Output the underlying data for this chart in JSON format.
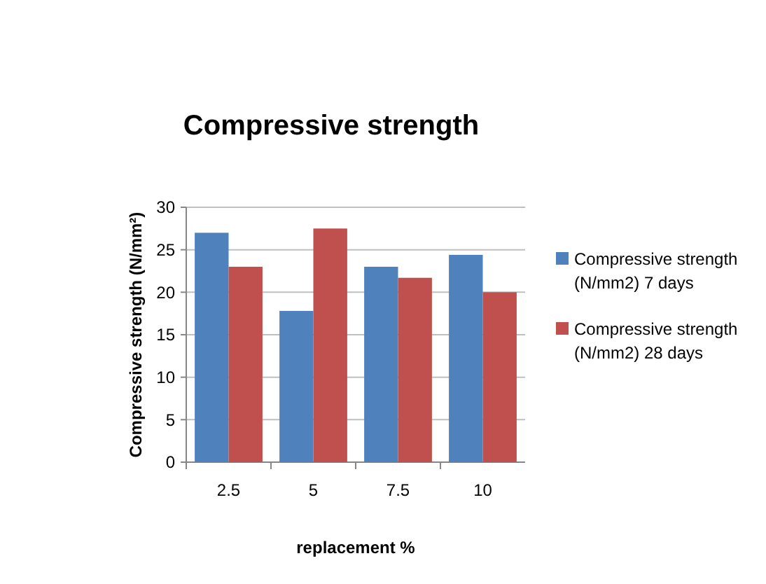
{
  "chart_data": {
    "type": "bar",
    "title": "Compressive strength",
    "xlabel": "replacement %",
    "ylabel": "Compressive strength (N/mm²)",
    "categories": [
      "2.5",
      "5",
      "7.5",
      "10"
    ],
    "series": [
      {
        "name": "Compressive strength (N/mm2) 7 days",
        "color": "#4f81bd",
        "values": [
          27,
          17.8,
          23,
          24.4
        ]
      },
      {
        "name": "Compressive strength (N/mm2) 28 days",
        "color": "#c0504d",
        "values": [
          23,
          27.5,
          21.7,
          20
        ]
      }
    ],
    "ylim": [
      0,
      30
    ],
    "yticks": [
      0,
      5,
      10,
      15,
      20,
      25,
      30
    ],
    "grid": "y",
    "legend": "right"
  }
}
